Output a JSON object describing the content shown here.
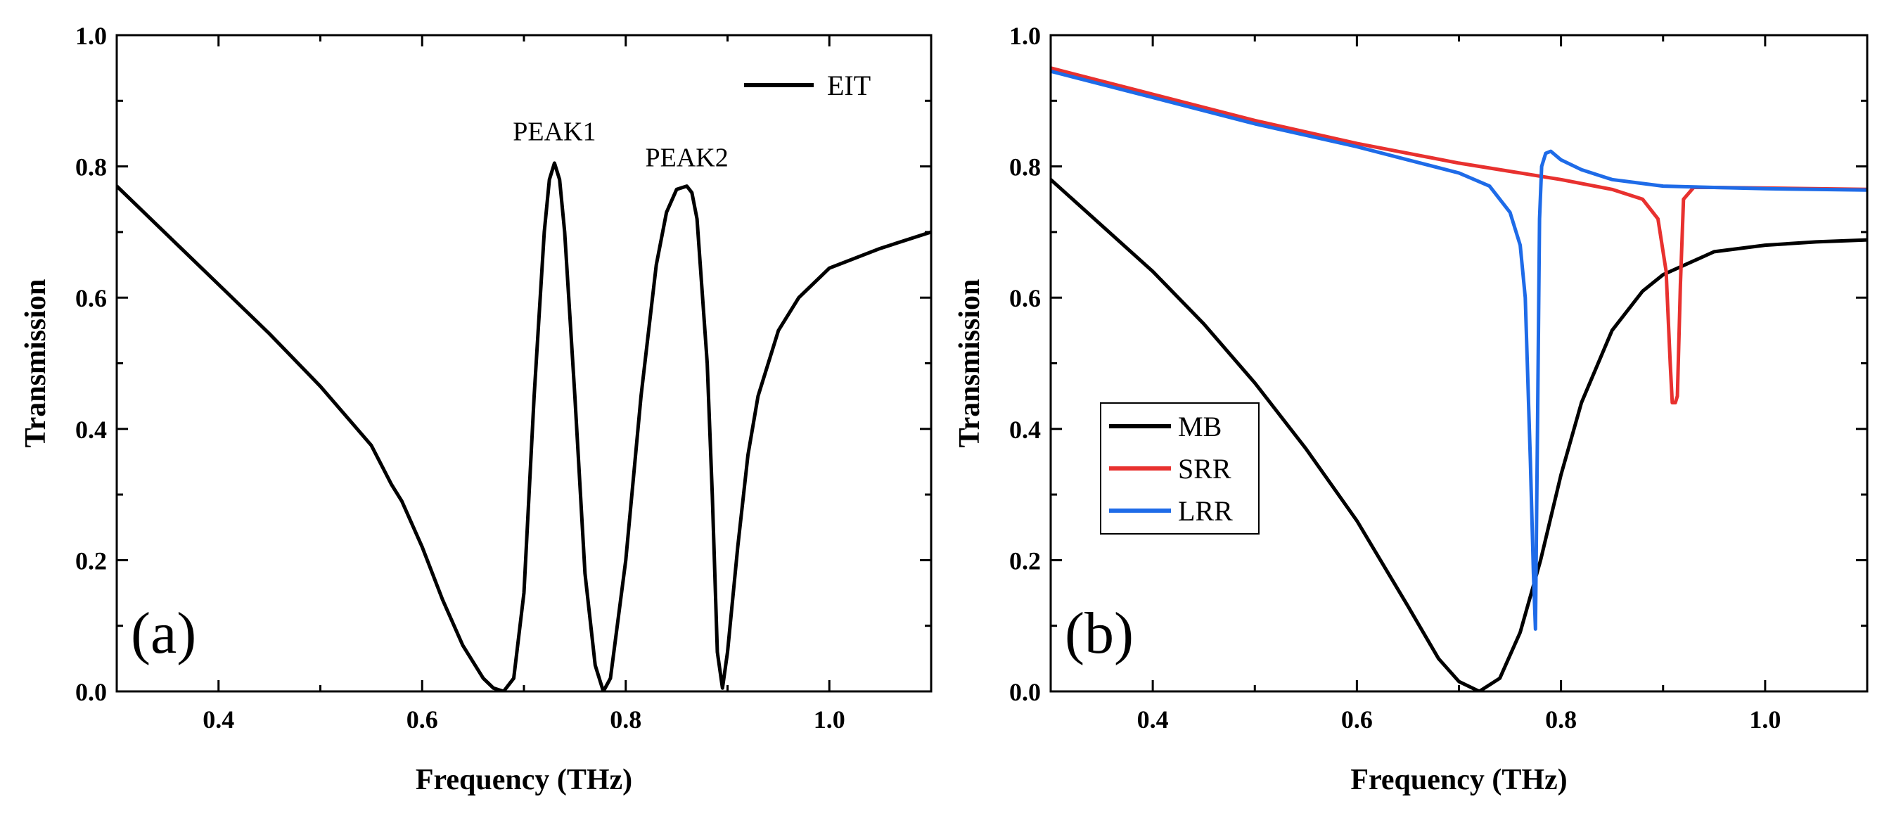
{
  "figure": {
    "panels": [
      "a",
      "b"
    ]
  },
  "chart_data": [
    {
      "type": "line",
      "panel_label": "(a)",
      "xlabel": "Frequency (THz)",
      "ylabel": "Transmission",
      "xlim": [
        0.3,
        1.1
      ],
      "ylim": [
        0.0,
        1.0
      ],
      "xticks": [
        "0.4",
        "0.6",
        "0.8",
        "1.0"
      ],
      "yticks": [
        "0.0",
        "0.2",
        "0.4",
        "0.6",
        "0.8",
        "1.0"
      ],
      "legend": {
        "position": "top-right",
        "entries": [
          "EIT"
        ]
      },
      "annotations": [
        {
          "text": "PEAK1",
          "x": 0.73,
          "y": 0.84
        },
        {
          "text": "PEAK2",
          "x": 0.86,
          "y": 0.8
        }
      ],
      "series": [
        {
          "name": "EIT",
          "color": "#000000",
          "x": [
            0.3,
            0.35,
            0.4,
            0.45,
            0.5,
            0.55,
            0.57,
            0.58,
            0.6,
            0.62,
            0.64,
            0.66,
            0.67,
            0.68,
            0.69,
            0.7,
            0.71,
            0.72,
            0.725,
            0.73,
            0.735,
            0.74,
            0.75,
            0.76,
            0.77,
            0.778,
            0.785,
            0.8,
            0.815,
            0.83,
            0.84,
            0.85,
            0.86,
            0.865,
            0.87,
            0.88,
            0.885,
            0.89,
            0.895,
            0.9,
            0.91,
            0.92,
            0.93,
            0.95,
            0.97,
            1.0,
            1.05,
            1.1
          ],
          "y": [
            0.77,
            0.695,
            0.62,
            0.545,
            0.465,
            0.375,
            0.315,
            0.29,
            0.22,
            0.14,
            0.07,
            0.02,
            0.005,
            0.0,
            0.02,
            0.15,
            0.45,
            0.7,
            0.78,
            0.805,
            0.78,
            0.7,
            0.45,
            0.18,
            0.04,
            0.0,
            0.02,
            0.2,
            0.45,
            0.65,
            0.73,
            0.765,
            0.77,
            0.76,
            0.72,
            0.5,
            0.3,
            0.06,
            0.005,
            0.06,
            0.22,
            0.36,
            0.45,
            0.55,
            0.6,
            0.645,
            0.675,
            0.7
          ]
        }
      ]
    },
    {
      "type": "line",
      "panel_label": "(b)",
      "xlabel": "Frequency (THz)",
      "ylabel": "Transmission",
      "xlim": [
        0.3,
        1.1
      ],
      "ylim": [
        0.0,
        1.0
      ],
      "xticks": [
        "0.4",
        "0.6",
        "0.8",
        "1.0"
      ],
      "yticks": [
        "0.0",
        "0.2",
        "0.4",
        "0.6",
        "0.8",
        "1.0"
      ],
      "legend": {
        "position": "center-left",
        "entries": [
          "MB",
          "SRR",
          "LRR"
        ]
      },
      "series": [
        {
          "name": "MB",
          "color": "#000000",
          "x": [
            0.3,
            0.35,
            0.4,
            0.45,
            0.5,
            0.55,
            0.6,
            0.65,
            0.68,
            0.7,
            0.72,
            0.74,
            0.76,
            0.78,
            0.8,
            0.82,
            0.85,
            0.88,
            0.9,
            0.95,
            1.0,
            1.05,
            1.1
          ],
          "y": [
            0.78,
            0.71,
            0.64,
            0.56,
            0.47,
            0.37,
            0.26,
            0.13,
            0.05,
            0.015,
            0.0,
            0.02,
            0.09,
            0.2,
            0.33,
            0.44,
            0.55,
            0.61,
            0.635,
            0.67,
            0.68,
            0.685,
            0.688
          ]
        },
        {
          "name": "SRR",
          "color": "#e8312f",
          "x": [
            0.3,
            0.4,
            0.5,
            0.6,
            0.7,
            0.8,
            0.85,
            0.88,
            0.895,
            0.903,
            0.907,
            0.909,
            0.912,
            0.914,
            0.917,
            0.92,
            0.93,
            0.95,
            1.0,
            1.1
          ],
          "y": [
            0.95,
            0.91,
            0.87,
            0.835,
            0.805,
            0.78,
            0.765,
            0.75,
            0.72,
            0.64,
            0.5,
            0.44,
            0.44,
            0.45,
            0.62,
            0.75,
            0.768,
            0.768,
            0.767,
            0.765
          ]
        },
        {
          "name": "LRR",
          "color": "#1e6be8",
          "x": [
            0.3,
            0.4,
            0.5,
            0.6,
            0.65,
            0.7,
            0.73,
            0.75,
            0.76,
            0.765,
            0.77,
            0.773,
            0.775,
            0.777,
            0.779,
            0.781,
            0.785,
            0.79,
            0.8,
            0.82,
            0.85,
            0.9,
            0.95,
            1.0,
            1.1
          ],
          "y": [
            0.945,
            0.905,
            0.865,
            0.83,
            0.81,
            0.79,
            0.77,
            0.73,
            0.68,
            0.6,
            0.35,
            0.18,
            0.095,
            0.4,
            0.72,
            0.8,
            0.82,
            0.823,
            0.81,
            0.795,
            0.78,
            0.77,
            0.768,
            0.766,
            0.764
          ]
        }
      ]
    }
  ]
}
